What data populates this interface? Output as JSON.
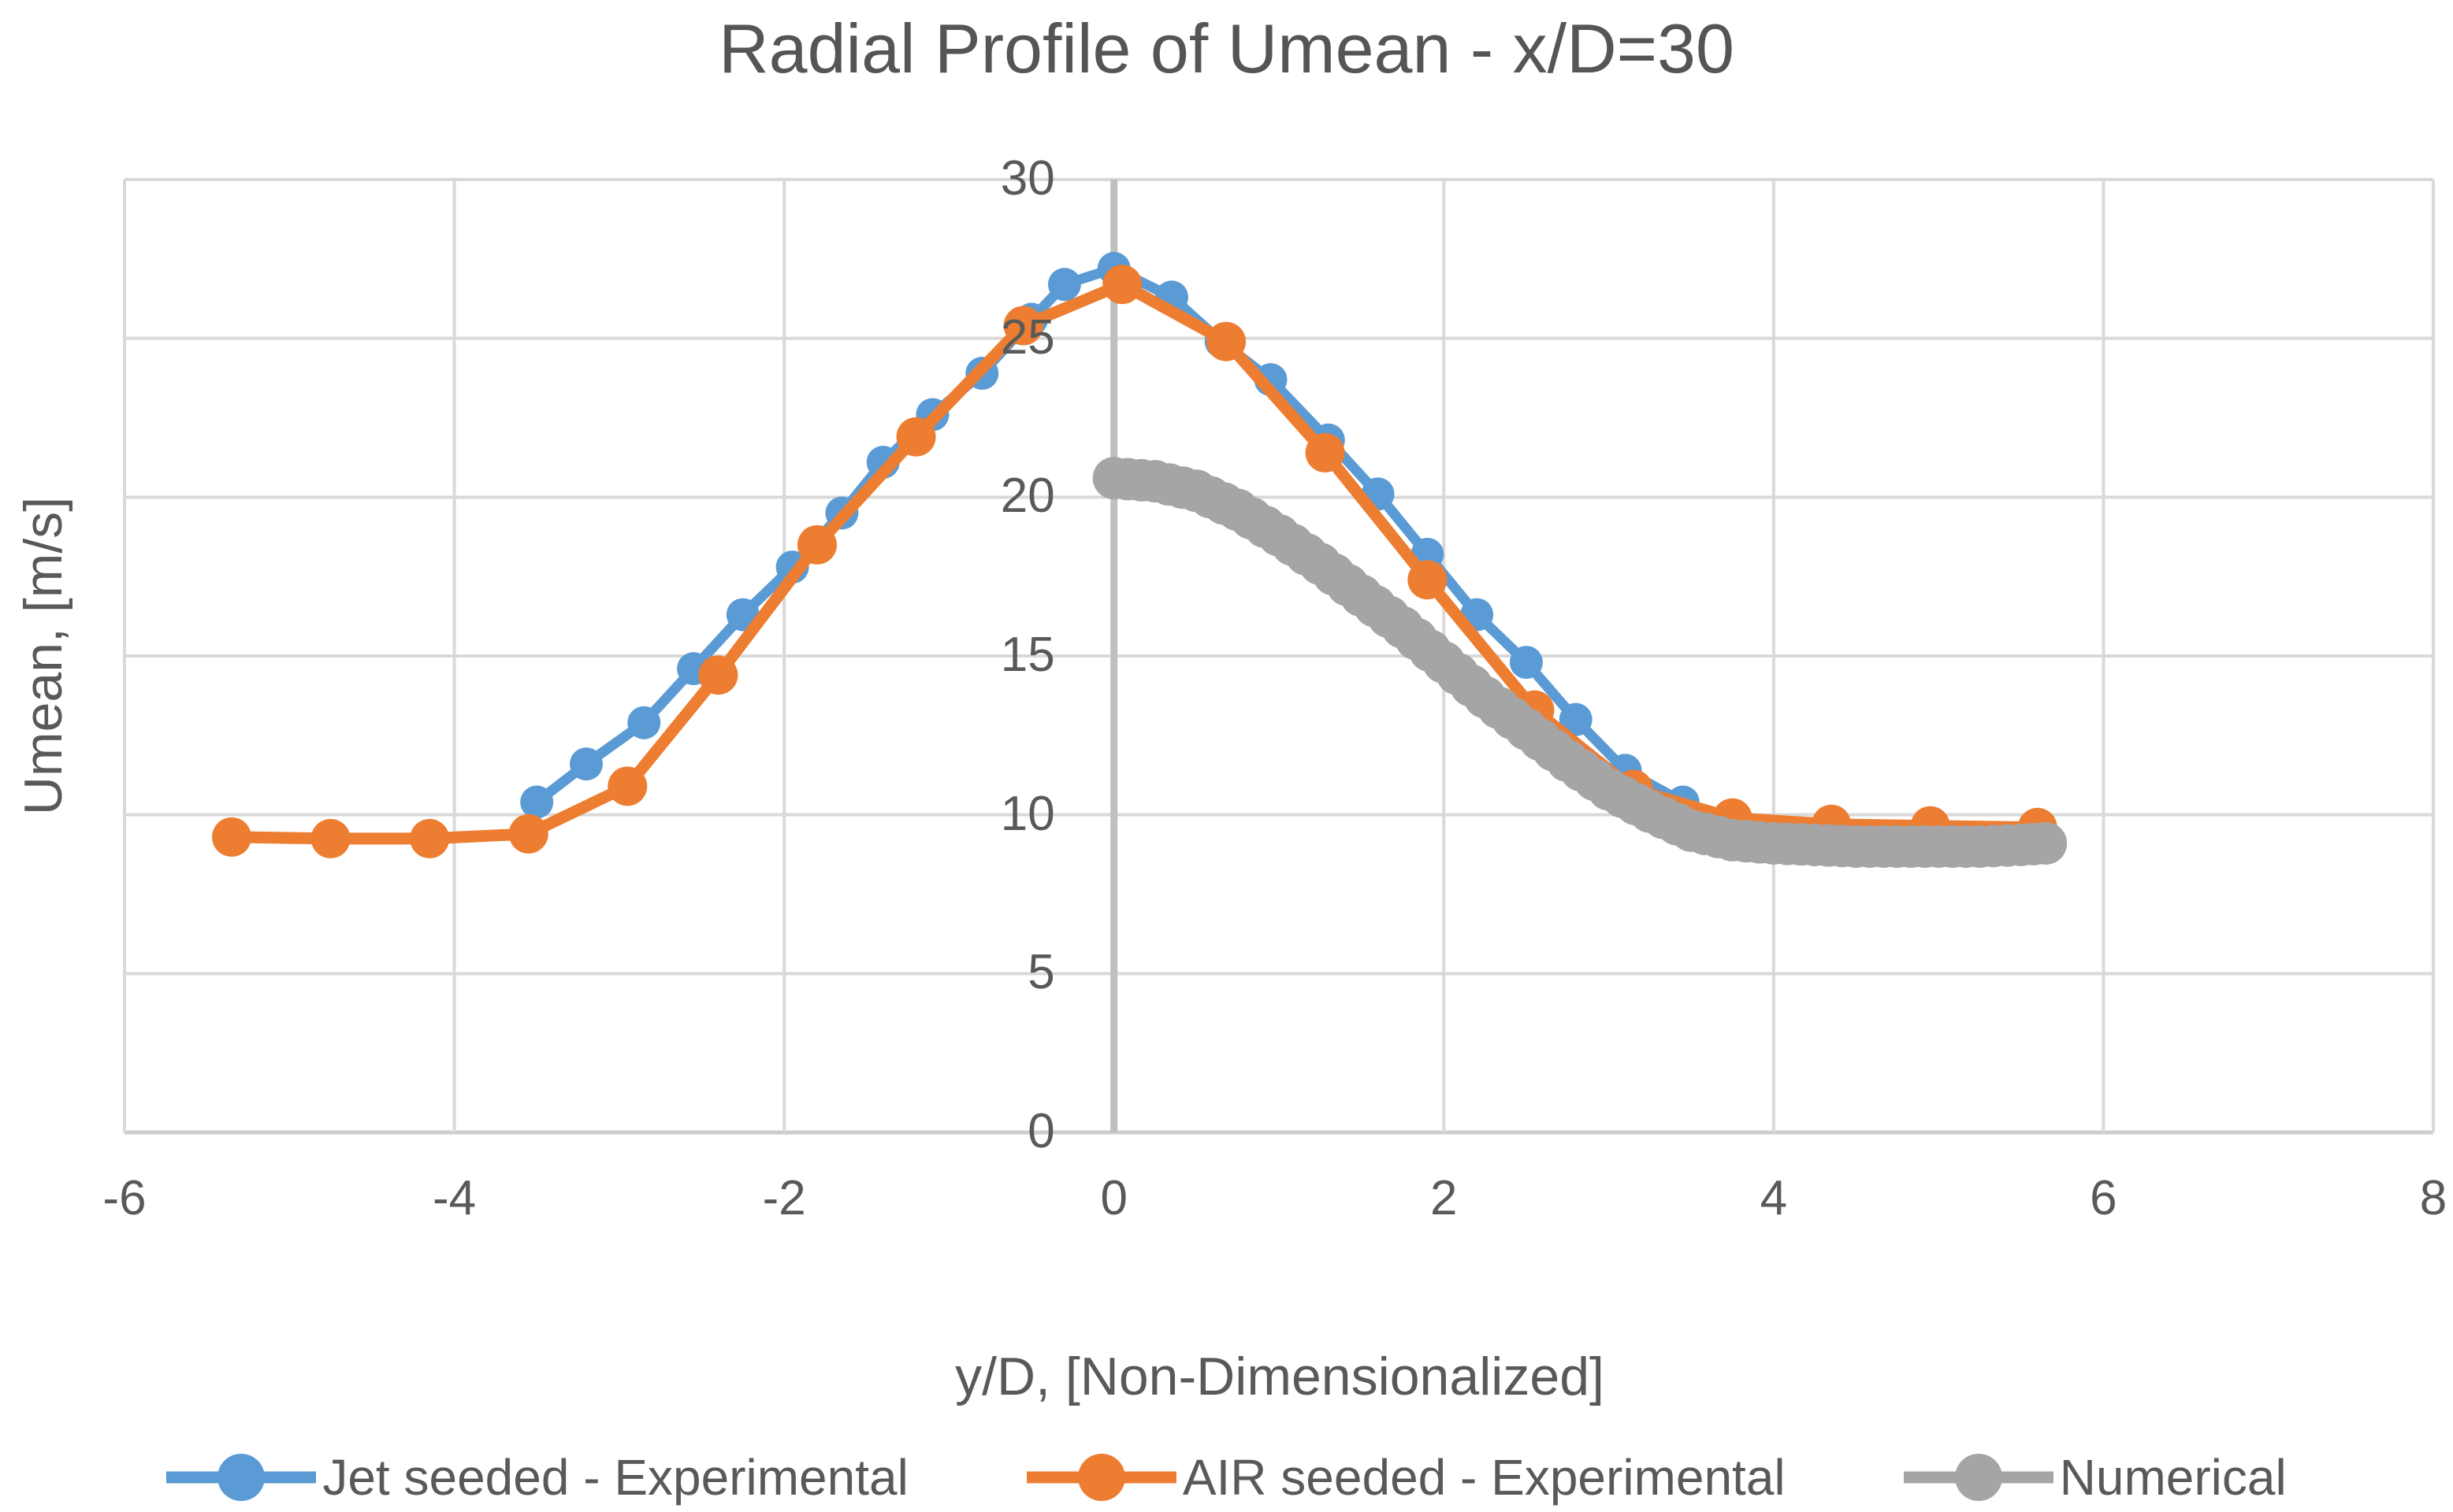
{
  "chart_data": {
    "type": "line",
    "title": "Radial Profile of Umean - x/D=30",
    "xlabel": "y/D, [Non-Dimensionalized]",
    "ylabel": "Umean, [m/s]",
    "xlim": [
      -6,
      8
    ],
    "ylim": [
      0,
      30
    ],
    "x_ticks": [
      -6,
      -4,
      -2,
      0,
      2,
      4,
      6,
      8
    ],
    "y_ticks": [
      0,
      5,
      10,
      15,
      20,
      25,
      30
    ],
    "grid": true,
    "axis_crosses_at_zero": true,
    "legend_position": "bottom",
    "colors": {
      "gridline": "#D9D9D9",
      "zero_axis": "#BFBFBF",
      "text": "#595959"
    },
    "series": [
      {
        "name": "Jet seeded - Experimental",
        "color": "#5B9BD5",
        "marker_radius": 21,
        "line_width": 13,
        "x": [
          -3.5,
          -3.2,
          -2.85,
          -2.55,
          -2.25,
          -1.95,
          -1.65,
          -1.4,
          -1.1,
          -0.8,
          -0.5,
          -0.3,
          0,
          0.35,
          0.65,
          0.95,
          1.3,
          1.6,
          1.9,
          2.2,
          2.5,
          2.8,
          3.1,
          3.45
        ],
        "y": [
          10.4,
          11.6,
          12.9,
          14.6,
          16.3,
          17.8,
          19.5,
          21.1,
          22.6,
          23.9,
          25.6,
          26.7,
          27.2,
          26.3,
          24.9,
          23.7,
          21.8,
          20.1,
          18.2,
          16.3,
          14.8,
          13.0,
          11.4,
          10.4
        ]
      },
      {
        "name": "AIR seeded - Experimental",
        "color": "#ED7D31",
        "marker_radius": 25,
        "line_width": 15,
        "x": [
          -5.35,
          -4.75,
          -4.15,
          -3.55,
          -2.95,
          -2.4,
          -1.8,
          -1.2,
          -0.55,
          0.05,
          0.68,
          1.28,
          1.9,
          2.55,
          3.15,
          3.75,
          4.35,
          4.95,
          5.6
        ],
        "y": [
          9.3,
          9.25,
          9.25,
          9.4,
          10.9,
          14.4,
          18.5,
          21.9,
          25.4,
          26.7,
          24.9,
          21.4,
          17.4,
          13.3,
          10.8,
          9.9,
          9.7,
          9.65,
          9.6
        ]
      },
      {
        "name": "Numerical",
        "color": "#A5A5A5",
        "marker_radius": 27,
        "line_width": 0,
        "marker_step": 0.1,
        "x": [
          0,
          0.25,
          0.5,
          0.75,
          1,
          1.25,
          1.5,
          1.75,
          2,
          2.25,
          2.5,
          2.75,
          3,
          3.25,
          3.5,
          3.75,
          4,
          4.25,
          4.5,
          4.75,
          5,
          5.25,
          5.5,
          5.65
        ],
        "y": [
          20.6,
          20.5,
          20.2,
          19.6,
          18.8,
          17.9,
          16.9,
          15.9,
          14.8,
          13.7,
          12.7,
          11.7,
          10.8,
          10.1,
          9.5,
          9.2,
          9.1,
          9.05,
          9.0,
          9.0,
          9.0,
          9.0,
          9.05,
          9.1
        ]
      }
    ]
  }
}
